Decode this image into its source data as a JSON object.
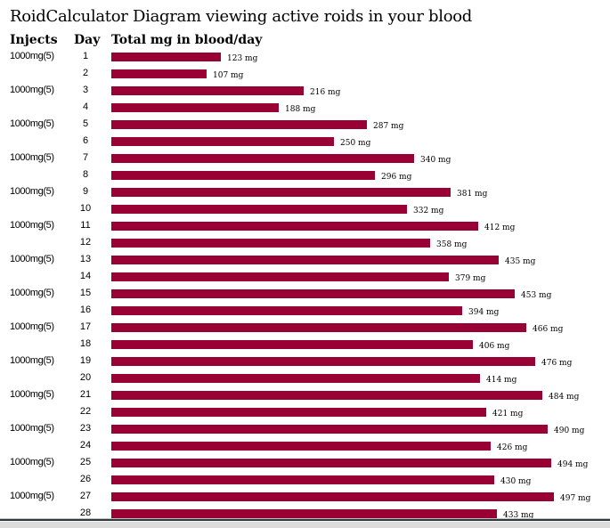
{
  "title": "RoidCalculator Diagram viewing active roids in your blood",
  "headers": {
    "injects": "Injects",
    "day": "Day",
    "total": "Total mg in blood/day"
  },
  "bar_color": "#990033",
  "chart_data": {
    "type": "bar",
    "orientation": "horizontal",
    "title": "RoidCalculator Diagram viewing active roids in your blood",
    "xlabel": "Total mg in blood/day",
    "ylabel": "Day",
    "unit": "mg",
    "categories": [
      "1",
      "2",
      "3",
      "4",
      "5",
      "6",
      "7",
      "8",
      "9",
      "10",
      "11",
      "12",
      "13",
      "14",
      "15",
      "16",
      "17",
      "18",
      "19",
      "20",
      "21",
      "22",
      "23",
      "24",
      "25",
      "26",
      "27",
      "28"
    ],
    "injects": [
      "1000mg(5)",
      "",
      "1000mg(5)",
      "",
      "1000mg(5)",
      "",
      "1000mg(5)",
      "",
      "1000mg(5)",
      "",
      "1000mg(5)",
      "",
      "1000mg(5)",
      "",
      "1000mg(5)",
      "",
      "1000mg(5)",
      "",
      "1000mg(5)",
      "",
      "1000mg(5)",
      "",
      "1000mg(5)",
      "",
      "1000mg(5)",
      "",
      "1000mg(5)",
      ""
    ],
    "values": [
      123,
      107,
      216,
      188,
      287,
      250,
      340,
      296,
      381,
      332,
      412,
      358,
      435,
      379,
      453,
      394,
      466,
      406,
      476,
      414,
      484,
      421,
      490,
      426,
      494,
      430,
      497,
      433
    ],
    "labels": [
      "123 mg",
      "107 mg",
      "216 mg",
      "188 mg",
      "287 mg",
      "250 mg",
      "340 mg",
      "296 mg",
      "381 mg",
      "332 mg",
      "412 mg",
      "358 mg",
      "435 mg",
      "379 mg",
      "453 mg",
      "394 mg",
      "466 mg",
      "406 mg",
      "476 mg",
      "414 mg",
      "484 mg",
      "421 mg",
      "490 mg",
      "426 mg",
      "494 mg",
      "430 mg",
      "497 mg",
      "433 mg"
    ],
    "xlim": [
      0,
      560
    ],
    "grid": false,
    "legend": "none"
  }
}
